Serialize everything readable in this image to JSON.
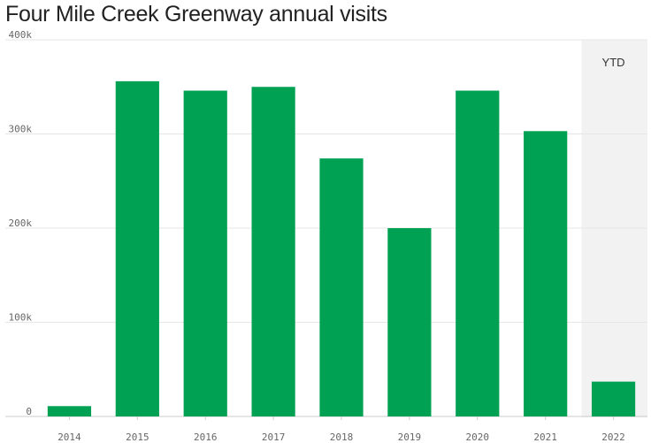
{
  "chart_data": {
    "type": "bar",
    "title": "Four Mile Creek Greenway annual visits",
    "categories": [
      "2014",
      "2015",
      "2016",
      "2017",
      "2018",
      "2019",
      "2020",
      "2021",
      "2022"
    ],
    "values": [
      11000,
      356000,
      346000,
      350000,
      274000,
      200000,
      346000,
      303000,
      37000
    ],
    "ylim": [
      0,
      400000
    ],
    "yticks": [
      0,
      100000,
      200000,
      300000,
      400000
    ],
    "ytick_labels": [
      "0",
      "100k",
      "200k",
      "300k",
      "400k"
    ],
    "grid": true,
    "bar_color": "#00a152",
    "highlight": {
      "category": "2022",
      "label": "YTD",
      "color": "#f2f2f2"
    }
  }
}
